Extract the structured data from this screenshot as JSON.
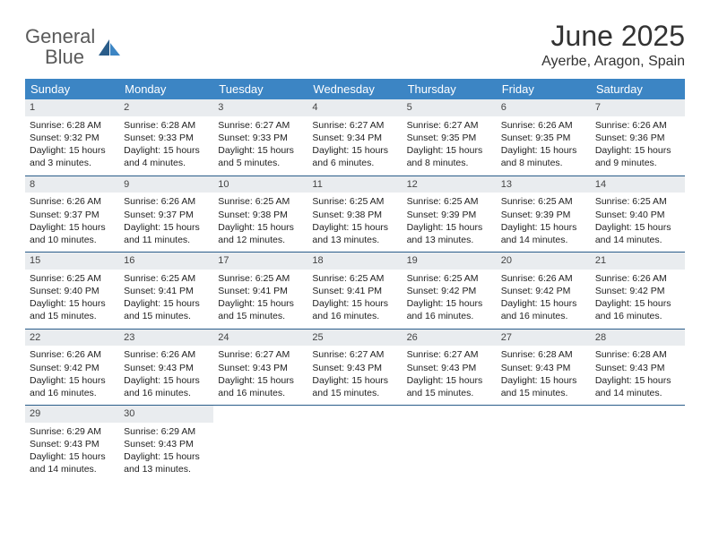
{
  "logo": {
    "text1": "General",
    "text2": "Blue"
  },
  "title": "June 2025",
  "location": "Ayerbe, Aragon, Spain",
  "header_bg": "#3c85c4",
  "daynum_bg": "#e9ecef",
  "sep_color": "#2a5d8a",
  "weekdays": [
    "Sunday",
    "Monday",
    "Tuesday",
    "Wednesday",
    "Thursday",
    "Friday",
    "Saturday"
  ],
  "days": [
    {
      "n": "1",
      "sr": "Sunrise: 6:28 AM",
      "ss": "Sunset: 9:32 PM",
      "d1": "Daylight: 15 hours",
      "d2": "and 3 minutes."
    },
    {
      "n": "2",
      "sr": "Sunrise: 6:28 AM",
      "ss": "Sunset: 9:33 PM",
      "d1": "Daylight: 15 hours",
      "d2": "and 4 minutes."
    },
    {
      "n": "3",
      "sr": "Sunrise: 6:27 AM",
      "ss": "Sunset: 9:33 PM",
      "d1": "Daylight: 15 hours",
      "d2": "and 5 minutes."
    },
    {
      "n": "4",
      "sr": "Sunrise: 6:27 AM",
      "ss": "Sunset: 9:34 PM",
      "d1": "Daylight: 15 hours",
      "d2": "and 6 minutes."
    },
    {
      "n": "5",
      "sr": "Sunrise: 6:27 AM",
      "ss": "Sunset: 9:35 PM",
      "d1": "Daylight: 15 hours",
      "d2": "and 8 minutes."
    },
    {
      "n": "6",
      "sr": "Sunrise: 6:26 AM",
      "ss": "Sunset: 9:35 PM",
      "d1": "Daylight: 15 hours",
      "d2": "and 8 minutes."
    },
    {
      "n": "7",
      "sr": "Sunrise: 6:26 AM",
      "ss": "Sunset: 9:36 PM",
      "d1": "Daylight: 15 hours",
      "d2": "and 9 minutes."
    },
    {
      "n": "8",
      "sr": "Sunrise: 6:26 AM",
      "ss": "Sunset: 9:37 PM",
      "d1": "Daylight: 15 hours",
      "d2": "and 10 minutes."
    },
    {
      "n": "9",
      "sr": "Sunrise: 6:26 AM",
      "ss": "Sunset: 9:37 PM",
      "d1": "Daylight: 15 hours",
      "d2": "and 11 minutes."
    },
    {
      "n": "10",
      "sr": "Sunrise: 6:25 AM",
      "ss": "Sunset: 9:38 PM",
      "d1": "Daylight: 15 hours",
      "d2": "and 12 minutes."
    },
    {
      "n": "11",
      "sr": "Sunrise: 6:25 AM",
      "ss": "Sunset: 9:38 PM",
      "d1": "Daylight: 15 hours",
      "d2": "and 13 minutes."
    },
    {
      "n": "12",
      "sr": "Sunrise: 6:25 AM",
      "ss": "Sunset: 9:39 PM",
      "d1": "Daylight: 15 hours",
      "d2": "and 13 minutes."
    },
    {
      "n": "13",
      "sr": "Sunrise: 6:25 AM",
      "ss": "Sunset: 9:39 PM",
      "d1": "Daylight: 15 hours",
      "d2": "and 14 minutes."
    },
    {
      "n": "14",
      "sr": "Sunrise: 6:25 AM",
      "ss": "Sunset: 9:40 PM",
      "d1": "Daylight: 15 hours",
      "d2": "and 14 minutes."
    },
    {
      "n": "15",
      "sr": "Sunrise: 6:25 AM",
      "ss": "Sunset: 9:40 PM",
      "d1": "Daylight: 15 hours",
      "d2": "and 15 minutes."
    },
    {
      "n": "16",
      "sr": "Sunrise: 6:25 AM",
      "ss": "Sunset: 9:41 PM",
      "d1": "Daylight: 15 hours",
      "d2": "and 15 minutes."
    },
    {
      "n": "17",
      "sr": "Sunrise: 6:25 AM",
      "ss": "Sunset: 9:41 PM",
      "d1": "Daylight: 15 hours",
      "d2": "and 15 minutes."
    },
    {
      "n": "18",
      "sr": "Sunrise: 6:25 AM",
      "ss": "Sunset: 9:41 PM",
      "d1": "Daylight: 15 hours",
      "d2": "and 16 minutes."
    },
    {
      "n": "19",
      "sr": "Sunrise: 6:25 AM",
      "ss": "Sunset: 9:42 PM",
      "d1": "Daylight: 15 hours",
      "d2": "and 16 minutes."
    },
    {
      "n": "20",
      "sr": "Sunrise: 6:26 AM",
      "ss": "Sunset: 9:42 PM",
      "d1": "Daylight: 15 hours",
      "d2": "and 16 minutes."
    },
    {
      "n": "21",
      "sr": "Sunrise: 6:26 AM",
      "ss": "Sunset: 9:42 PM",
      "d1": "Daylight: 15 hours",
      "d2": "and 16 minutes."
    },
    {
      "n": "22",
      "sr": "Sunrise: 6:26 AM",
      "ss": "Sunset: 9:42 PM",
      "d1": "Daylight: 15 hours",
      "d2": "and 16 minutes."
    },
    {
      "n": "23",
      "sr": "Sunrise: 6:26 AM",
      "ss": "Sunset: 9:43 PM",
      "d1": "Daylight: 15 hours",
      "d2": "and 16 minutes."
    },
    {
      "n": "24",
      "sr": "Sunrise: 6:27 AM",
      "ss": "Sunset: 9:43 PM",
      "d1": "Daylight: 15 hours",
      "d2": "and 16 minutes."
    },
    {
      "n": "25",
      "sr": "Sunrise: 6:27 AM",
      "ss": "Sunset: 9:43 PM",
      "d1": "Daylight: 15 hours",
      "d2": "and 15 minutes."
    },
    {
      "n": "26",
      "sr": "Sunrise: 6:27 AM",
      "ss": "Sunset: 9:43 PM",
      "d1": "Daylight: 15 hours",
      "d2": "and 15 minutes."
    },
    {
      "n": "27",
      "sr": "Sunrise: 6:28 AM",
      "ss": "Sunset: 9:43 PM",
      "d1": "Daylight: 15 hours",
      "d2": "and 15 minutes."
    },
    {
      "n": "28",
      "sr": "Sunrise: 6:28 AM",
      "ss": "Sunset: 9:43 PM",
      "d1": "Daylight: 15 hours",
      "d2": "and 14 minutes."
    },
    {
      "n": "29",
      "sr": "Sunrise: 6:29 AM",
      "ss": "Sunset: 9:43 PM",
      "d1": "Daylight: 15 hours",
      "d2": "and 14 minutes."
    },
    {
      "n": "30",
      "sr": "Sunrise: 6:29 AM",
      "ss": "Sunset: 9:43 PM",
      "d1": "Daylight: 15 hours",
      "d2": "and 13 minutes."
    }
  ]
}
